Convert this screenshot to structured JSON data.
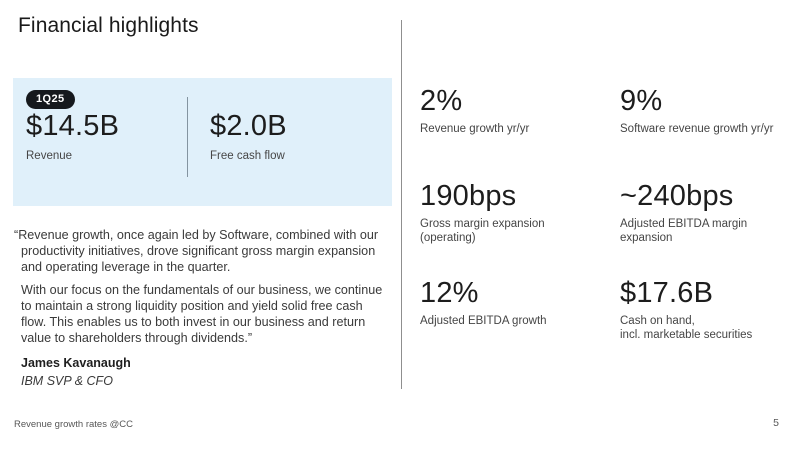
{
  "slide": {
    "title": "Financial highlights",
    "footnote": "Revenue growth rates @CC",
    "page_number": "5"
  },
  "highlight_card": {
    "period_badge": "1Q25",
    "metrics": [
      {
        "value": "$14.5B",
        "label": "Revenue"
      },
      {
        "value": "$2.0B",
        "label": "Free cash flow"
      }
    ]
  },
  "quote": {
    "paragraph1": "“Revenue growth, once again led by Software, combined with our productivity initiatives, drove significant gross margin expansion and operating leverage in the quarter.",
    "paragraph2": "With our focus on the fundamentals of our business, we continue to maintain a strong liquidity position and yield solid free cash flow. This enables us to both invest in our business and return value to shareholders through dividends.”",
    "author": "James Kavanaugh",
    "author_title": "IBM SVP & CFO"
  },
  "metrics_grid": [
    {
      "value": "2%",
      "label": "Revenue growth yr/yr"
    },
    {
      "value": "9%",
      "label": "Software revenue growth yr/yr"
    },
    {
      "value": "190bps",
      "label": "Gross margin expansion\n(operating)"
    },
    {
      "value": "~240bps",
      "label": "Adjusted EBITDA margin\nexpansion"
    },
    {
      "value": "12%",
      "label": "Adjusted EBITDA growth"
    },
    {
      "value": "$17.6B",
      "label": "Cash on hand,\nincl. marketable securities"
    }
  ],
  "colors": {
    "card_background": "#e0f0fa",
    "badge_background": "#16191d",
    "badge_text": "#ffffff",
    "text_primary": "#1d1d1d",
    "text_secondary": "#3a3a3a",
    "divider": "#8f8f8f"
  }
}
